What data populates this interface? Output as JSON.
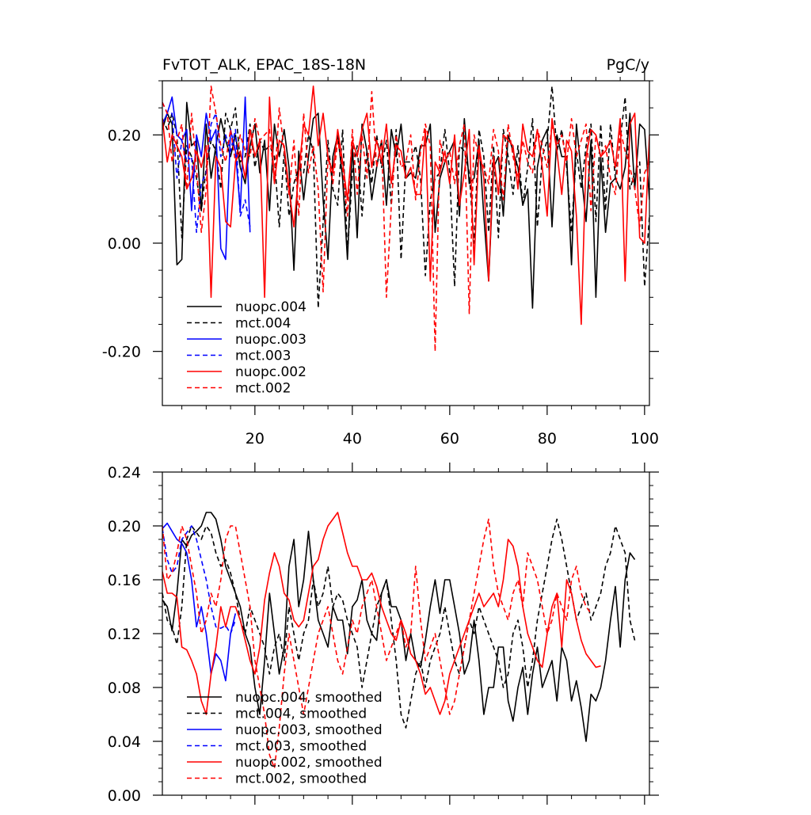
{
  "chart_data": [
    {
      "type": "line",
      "title": "FvTOT_ALK, EPAC_18S-18N",
      "units": "PgC/y",
      "xlabel": "",
      "ylabel": "",
      "xlim": [
        1,
        101
      ],
      "ylim": [
        -0.3,
        0.3
      ],
      "xticks": [
        20,
        40,
        60,
        80,
        100
      ],
      "xtick_labels": [
        "20",
        "40",
        "60",
        "80",
        "100"
      ],
      "yticks": [
        -0.2,
        0.0,
        0.2
      ],
      "ytick_labels": [
        "-0.20",
        "0.00",
        "0.20"
      ],
      "legend": [
        "nuopc.004",
        "mct.004",
        "nuopc.003",
        "mct.003",
        "nuopc.002",
        "mct.002"
      ],
      "series": [
        {
          "name": "nuopc.004",
          "color": "#000000",
          "dash": "solid",
          "x_start": 1,
          "values": [
            0.21,
            0.24,
            0.22,
            -0.04,
            -0.03,
            0.26,
            0.18,
            0.19,
            0.06,
            0.22,
            0.12,
            0.18,
            0.23,
            0.19,
            0.16,
            0.2,
            0.14,
            0.11,
            0.18,
            0.22,
            0.13,
            0.19,
            0.06,
            0.22,
            0.16,
            0.21,
            0.14,
            -0.05,
            0.17,
            0.08,
            0.16,
            0.23,
            0.24,
            0.08,
            -0.03,
            0.16,
            0.2,
            0.12,
            -0.03,
            0.18,
            0.01,
            0.22,
            0.17,
            0.08,
            0.14,
            0.19,
            0.07,
            0.21,
            0.16,
            0.22,
            0.12,
            0.13,
            0.12,
            0.18,
            0.18,
            0.22,
            0.02,
            0.12,
            0.15,
            0.17,
            0.19,
            0.05,
            0.23,
            0.11,
            0.12,
            0.19,
            0.05,
            -0.07,
            0.14,
            0.16,
            0.05,
            0.2,
            0.17,
            0.14,
            0.07,
            0.1,
            -0.12,
            0.14,
            0.19,
            0.21,
            0.03,
            0.2,
            0.16,
            0.16,
            -0.04,
            0.22,
            0.13,
            0.04,
            0.19,
            -0.1,
            0.16,
            0.02,
            0.11,
            0.12,
            0.1,
            0.14,
            0.24,
            0.1,
            0.22,
            0.21,
            0.08
          ]
        },
        {
          "name": "mct.004",
          "color": "#000000",
          "dash": "dashed",
          "x_start": 1,
          "values": [
            0.23,
            0.21,
            0.24,
            0.2,
            0.01,
            0.18,
            0.16,
            0.12,
            0.06,
            0.14,
            0.19,
            0.17,
            0.1,
            0.24,
            0.21,
            0.25,
            0.15,
            0.16,
            0.22,
            0.14,
            0.19,
            0.17,
            0.18,
            0.16,
            0.03,
            0.17,
            0.05,
            0.11,
            0.14,
            0.13,
            0.2,
            0.17,
            -0.12,
            0.04,
            0.19,
            0.1,
            0.07,
            0.21,
            -0.02,
            0.13,
            0.18,
            0.05,
            0.17,
            0.11,
            0.2,
            0.14,
            0.19,
            0.07,
            0.21,
            -0.03,
            0.15,
            0.15,
            0.18,
            0.12,
            -0.06,
            0.08,
            0.12,
            0.13,
            0.21,
            0.13,
            -0.08,
            0.18,
            0.17,
            0.13,
            0.0,
            0.21,
            0.16,
            0.02,
            0.18,
            0.01,
            0.21,
            0.16,
            0.09,
            0.18,
            0.07,
            0.14,
            0.23,
            0.03,
            0.16,
            0.19,
            0.29,
            0.17,
            0.21,
            0.14,
            0.02,
            0.17,
            0.1,
            0.18,
            0.22,
            0.04,
            0.22,
            0.06,
            0.22,
            0.12,
            0.19,
            0.27,
            0.1,
            0.13,
            0.15,
            -0.08,
            0.05
          ]
        },
        {
          "name": "nuopc.003",
          "color": "#0000ff",
          "dash": "solid",
          "x_start": 1,
          "values": [
            0.22,
            0.24,
            0.27,
            0.2,
            0.19,
            0.21,
            0.06,
            0.2,
            0.16,
            0.24,
            0.19,
            0.21,
            -0.01,
            -0.03,
            0.21,
            0.17,
            0.06,
            0.27,
            0.02
          ]
        },
        {
          "name": "mct.003",
          "color": "#0000ff",
          "dash": "dashed",
          "x_start": 1,
          "values": [
            0.26,
            0.24,
            0.24,
            0.12,
            0.19,
            0.15,
            0.16,
            0.02,
            0.11,
            0.13,
            0.22,
            0.24,
            0.16,
            0.2,
            0.17,
            0.21,
            0.05,
            0.08,
            0.03
          ]
        },
        {
          "name": "nuopc.002",
          "color": "#ff0000",
          "dash": "solid",
          "x_start": 1,
          "values": [
            0.23,
            0.15,
            0.2,
            0.18,
            0.16,
            0.1,
            0.12,
            0.17,
            0.14,
            0.18,
            -0.1,
            0.16,
            0.14,
            0.04,
            0.03,
            0.15,
            0.17,
            0.12,
            0.21,
            0.16,
            0.19,
            -0.1,
            0.27,
            0.11,
            0.19,
            0.18,
            0.1,
            0.03,
            0.13,
            0.22,
            0.2,
            0.29,
            0.18,
            0.24,
            0.16,
            0.13,
            0.21,
            0.15,
            0.08,
            0.19,
            0.16,
            0.21,
            0.24,
            0.14,
            0.19,
            0.15,
            0.22,
            0.11,
            0.18,
            0.17,
            0.12,
            0.14,
            0.09,
            0.09,
            0.21,
            -0.07,
            0.15,
            0.13,
            0.17,
            0.11,
            0.2,
            0.07,
            0.13,
            0.21,
            -0.04,
            0.18,
            0.12,
            -0.07,
            0.16,
            0.09,
            0.2,
            0.19,
            0.18,
            0.1,
            0.22,
            0.17,
            0.16,
            0.21,
            0.14,
            0.05,
            0.23,
            0.17,
            0.09,
            0.19,
            0.17,
            0.05,
            -0.15,
            0.16,
            0.21,
            0.2,
            0.16,
            0.17,
            0.19,
            0.14,
            0.23,
            -0.07,
            0.22,
            0.24,
            0.01,
            0.0,
            0.2
          ]
        },
        {
          "name": "mct.002",
          "color": "#ff0000",
          "dash": "dashed",
          "x_start": 1,
          "values": [
            0.26,
            0.24,
            0.15,
            0.19,
            0.22,
            0.1,
            0.24,
            0.14,
            0.02,
            0.1,
            0.29,
            0.24,
            0.18,
            0.15,
            0.21,
            0.15,
            0.2,
            0.17,
            0.16,
            0.23,
            0.19,
            0.2,
            0.21,
            0.11,
            0.25,
            0.17,
            0.09,
            0.19,
            0.05,
            0.24,
            0.13,
            0.18,
            0.1,
            -0.09,
            0.16,
            0.11,
            0.19,
            0.14,
            0.05,
            0.21,
            0.09,
            0.2,
            0.12,
            0.28,
            0.14,
            0.19,
            -0.1,
            0.07,
            0.2,
            0.14,
            0.15,
            0.2,
            0.08,
            0.17,
            0.22,
            0.18,
            -0.2,
            0.19,
            0.15,
            0.17,
            0.11,
            0.18,
            0.22,
            -0.13,
            0.2,
            0.16,
            0.14,
            0.11,
            0.21,
            0.17,
            0.08,
            0.22,
            0.16,
            0.12,
            0.19,
            0.15,
            0.13,
            0.21,
            0.18,
            0.14,
            0.22,
            0.18,
            0.2,
            0.15,
            0.23,
            0.16,
            0.19,
            0.22,
            0.06,
            0.2,
            0.16,
            0.18,
            0.12,
            0.09,
            0.21,
            0.17,
            0.14,
            0.1,
            0.03,
            0.13,
            0.15
          ]
        }
      ]
    },
    {
      "type": "line",
      "title": "",
      "xlabel": "",
      "ylabel": "",
      "xlim": [
        1,
        101
      ],
      "ylim": [
        0.0,
        0.24
      ],
      "xticks": [
        20,
        40,
        60,
        80,
        100
      ],
      "xtick_labels": [],
      "yticks": [
        0.0,
        0.04,
        0.08,
        0.12,
        0.16,
        0.2,
        0.24
      ],
      "ytick_labels": [
        "0.00",
        "0.04",
        "0.08",
        "0.12",
        "0.16",
        "0.20",
        "0.24"
      ],
      "legend": [
        "nuopc.004, smoothed",
        "mct.004, smoothed",
        "nuopc.003, smoothed",
        "mct.003, smoothed",
        "nuopc.002, smoothed",
        "mct.002, smoothed"
      ],
      "series": [
        {
          "name": "nuopc.004, smoothed",
          "color": "#000000",
          "dash": "solid",
          "x_start": 1,
          "values": [
            0.145,
            0.14,
            0.122,
            0.15,
            0.19,
            0.185,
            0.193,
            0.196,
            0.2,
            0.21,
            0.21,
            0.205,
            0.19,
            0.17,
            0.16,
            0.15,
            0.14,
            0.12,
            0.11,
            0.08,
            0.06,
            0.1,
            0.15,
            0.12,
            0.09,
            0.11,
            0.17,
            0.19,
            0.14,
            0.16,
            0.196,
            0.16,
            0.13,
            0.12,
            0.11,
            0.14,
            0.13,
            0.13,
            0.105,
            0.14,
            0.145,
            0.16,
            0.13,
            0.12,
            0.115,
            0.15,
            0.16,
            0.14,
            0.14,
            0.13,
            0.1,
            0.12,
            0.1,
            0.095,
            0.115,
            0.14,
            0.16,
            0.135,
            0.16,
            0.16,
            0.14,
            0.12,
            0.09,
            0.1,
            0.13,
            0.1,
            0.06,
            0.08,
            0.08,
            0.11,
            0.11,
            0.07,
            0.055,
            0.08,
            0.095,
            0.06,
            0.09,
            0.11,
            0.08,
            0.09,
            0.1,
            0.07,
            0.11,
            0.1,
            0.07,
            0.085,
            0.065,
            0.04,
            0.075,
            0.07,
            0.08,
            0.1,
            0.13,
            0.155,
            0.11,
            0.16,
            0.18,
            0.175
          ]
        },
        {
          "name": "mct.004, smoothed",
          "color": "#000000",
          "dash": "dashed",
          "x_start": 1,
          "values": [
            0.15,
            0.13,
            0.125,
            0.112,
            0.14,
            0.19,
            0.2,
            0.195,
            0.19,
            0.2,
            0.195,
            0.18,
            0.17,
            0.175,
            0.165,
            0.15,
            0.13,
            0.12,
            0.14,
            0.13,
            0.12,
            0.11,
            0.09,
            0.11,
            0.12,
            0.1,
            0.14,
            0.12,
            0.1,
            0.12,
            0.13,
            0.16,
            0.14,
            0.15,
            0.17,
            0.14,
            0.15,
            0.145,
            0.13,
            0.12,
            0.11,
            0.08,
            0.1,
            0.12,
            0.14,
            0.15,
            0.16,
            0.13,
            0.1,
            0.06,
            0.05,
            0.07,
            0.09,
            0.1,
            0.08,
            0.1,
            0.11,
            0.12,
            0.14,
            0.12,
            0.1,
            0.09,
            0.11,
            0.13,
            0.12,
            0.14,
            0.13,
            0.12,
            0.11,
            0.1,
            0.08,
            0.09,
            0.12,
            0.13,
            0.11,
            0.08,
            0.1,
            0.13,
            0.15,
            0.17,
            0.19,
            0.205,
            0.19,
            0.17,
            0.15,
            0.13,
            0.14,
            0.15,
            0.13,
            0.14,
            0.15,
            0.17,
            0.18,
            0.2,
            0.19,
            0.18,
            0.13,
            0.115
          ]
        },
        {
          "name": "nuopc.003, smoothed",
          "color": "#0000ff",
          "dash": "solid",
          "x_start": 1,
          "values": [
            0.198,
            0.202,
            0.196,
            0.19,
            0.187,
            0.18,
            0.16,
            0.125,
            0.14,
            0.12,
            0.09,
            0.105,
            0.1,
            0.085,
            0.12,
            0.135
          ]
        },
        {
          "name": "mct.003, smoothed",
          "color": "#0000ff",
          "dash": "dashed",
          "x_start": 1,
          "values": [
            0.198,
            0.175,
            0.165,
            0.17,
            0.19,
            0.195,
            0.2,
            0.19,
            0.175,
            0.16,
            0.14,
            0.125,
            0.124,
            0.126,
            0.12,
            0.13
          ]
        },
        {
          "name": "nuopc.002, smoothed",
          "color": "#ff0000",
          "dash": "solid",
          "x_start": 1,
          "values": [
            0.166,
            0.15,
            0.15,
            0.147,
            0.11,
            0.108,
            0.1,
            0.09,
            0.07,
            0.06,
            0.09,
            0.11,
            0.14,
            0.125,
            0.14,
            0.14,
            0.13,
            0.115,
            0.1,
            0.09,
            0.11,
            0.145,
            0.165,
            0.18,
            0.17,
            0.15,
            0.145,
            0.13,
            0.125,
            0.13,
            0.15,
            0.17,
            0.175,
            0.19,
            0.2,
            0.205,
            0.21,
            0.195,
            0.18,
            0.17,
            0.17,
            0.16,
            0.16,
            0.165,
            0.155,
            0.14,
            0.13,
            0.12,
            0.115,
            0.13,
            0.12,
            0.105,
            0.1,
            0.09,
            0.075,
            0.08,
            0.07,
            0.06,
            0.07,
            0.09,
            0.1,
            0.11,
            0.12,
            0.13,
            0.14,
            0.15,
            0.14,
            0.145,
            0.15,
            0.14,
            0.16,
            0.19,
            0.185,
            0.17,
            0.14,
            0.12,
            0.11,
            0.1,
            0.095,
            0.12,
            0.14,
            0.15,
            0.11,
            0.16,
            0.15,
            0.13,
            0.115,
            0.105,
            0.1,
            0.095,
            0.096
          ]
        },
        {
          "name": "mct.002, smoothed",
          "color": "#ff0000",
          "dash": "dashed",
          "x_start": 1,
          "values": [
            0.2,
            0.16,
            0.165,
            0.18,
            0.2,
            0.19,
            0.17,
            0.15,
            0.12,
            0.13,
            0.15,
            0.14,
            0.16,
            0.19,
            0.2,
            0.2,
            0.18,
            0.16,
            0.14,
            0.1,
            0.08,
            0.06,
            0.03,
            0.02,
            0.05,
            0.09,
            0.12,
            0.1,
            0.08,
            0.06,
            0.08,
            0.1,
            0.12,
            0.13,
            0.14,
            0.12,
            0.1,
            0.09,
            0.11,
            0.13,
            0.12,
            0.14,
            0.15,
            0.16,
            0.14,
            0.12,
            0.1,
            0.11,
            0.12,
            0.13,
            0.11,
            0.12,
            0.17,
            0.13,
            0.1,
            0.11,
            0.12,
            0.1,
            0.08,
            0.06,
            0.07,
            0.09,
            0.11,
            0.13,
            0.15,
            0.17,
            0.19,
            0.205,
            0.17,
            0.15,
            0.14,
            0.13,
            0.15,
            0.16,
            0.14,
            0.18,
            0.17,
            0.16,
            0.14,
            0.12,
            0.13,
            0.15,
            0.14,
            0.13,
            0.16,
            0.17,
            0.15,
            0.14,
            0.135
          ]
        }
      ]
    }
  ]
}
